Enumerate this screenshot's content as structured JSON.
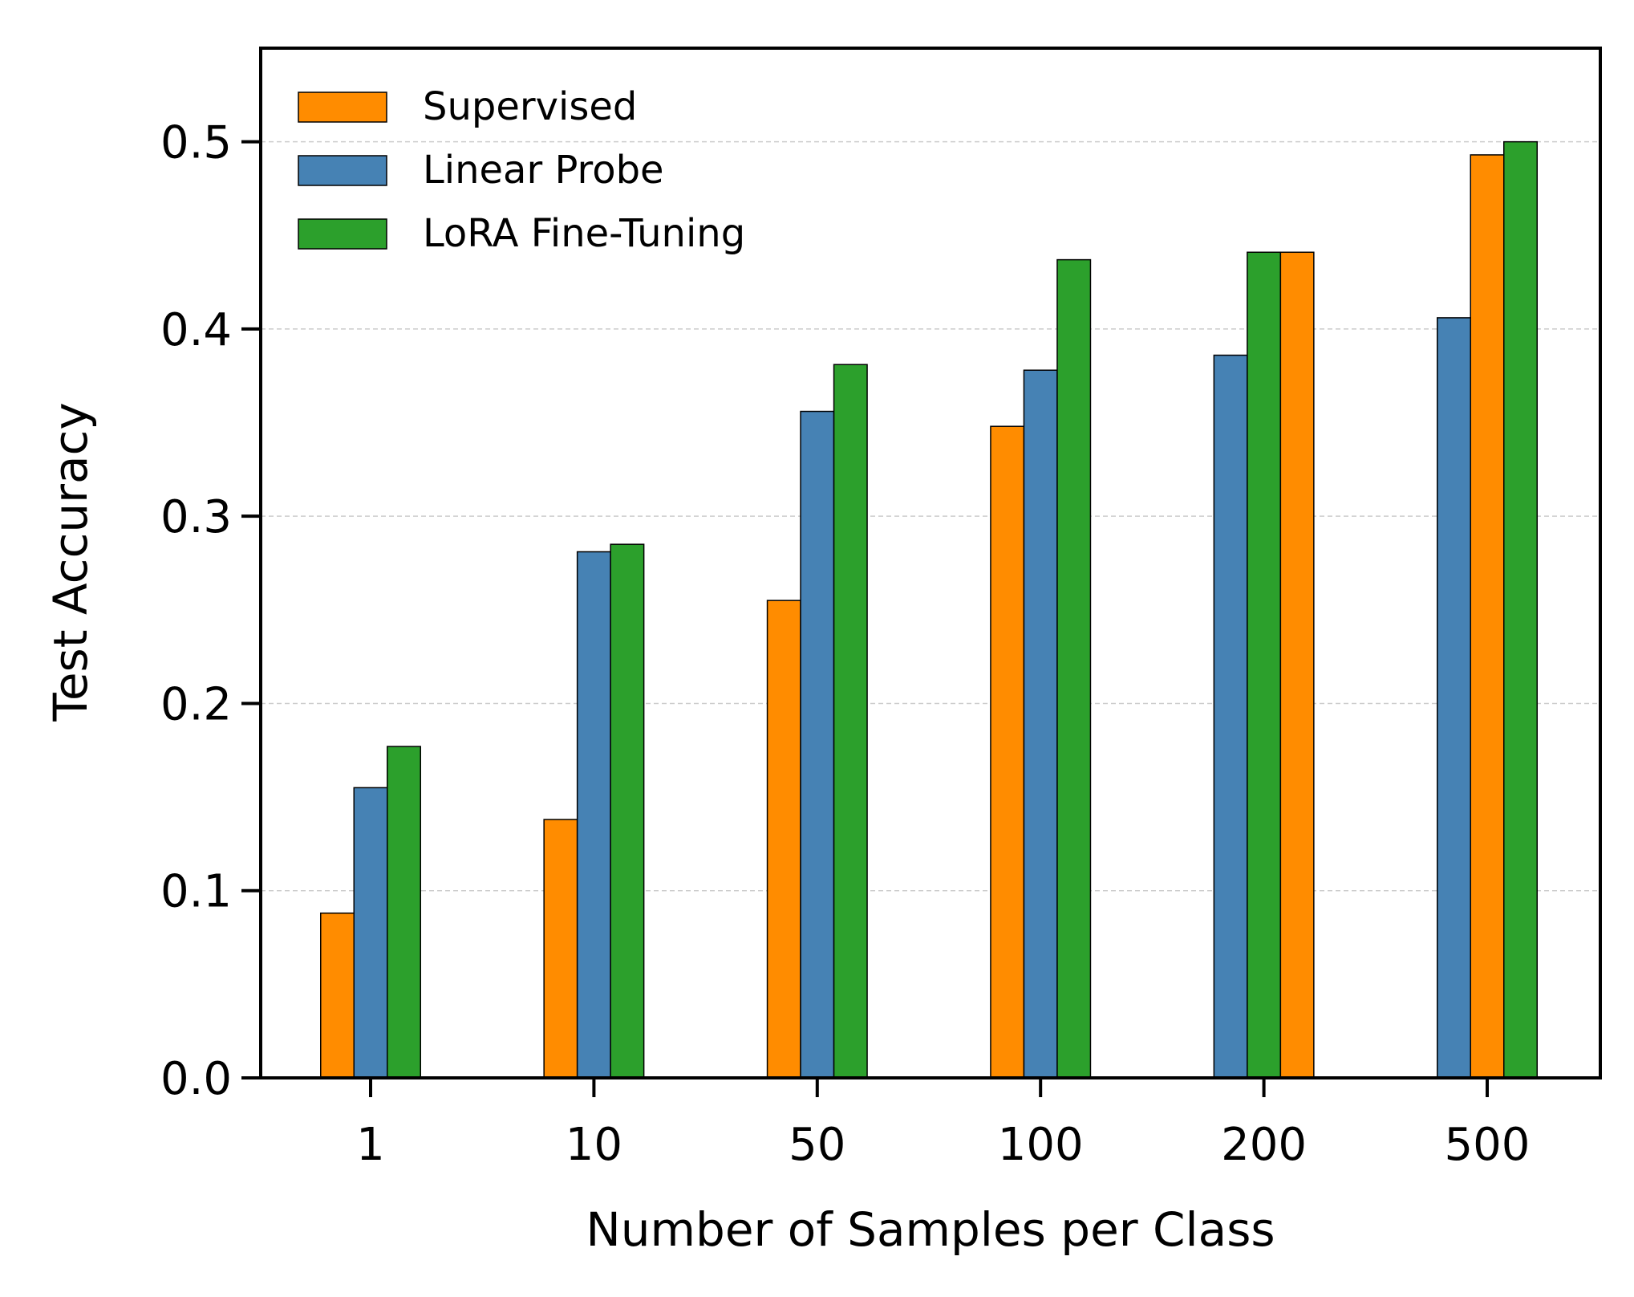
{
  "chart_data": {
    "type": "bar",
    "title": "",
    "xlabel": "Number of Samples per Class",
    "ylabel": "Test Accuracy",
    "ylim": [
      0,
      0.55
    ],
    "yticks": [
      0.0,
      0.1,
      0.2,
      0.3,
      0.4,
      0.5
    ],
    "ytick_labels": [
      "0.0",
      "0.1",
      "0.2",
      "0.3",
      "0.4",
      "0.5"
    ],
    "grid": "horizontal dashed",
    "legend_position": "top-left",
    "categories": [
      "1",
      "10",
      "50",
      "100",
      "200",
      "500"
    ],
    "series": [
      {
        "name": "Supervised",
        "color": "#ff8c00",
        "values": [
          0.088,
          0.138,
          0.255,
          0.348,
          0.441,
          0.493
        ]
      },
      {
        "name": "Linear Probe",
        "color": "#4682b4",
        "values": [
          0.155,
          0.281,
          0.356,
          0.378,
          0.386,
          0.406
        ]
      },
      {
        "name": "LoRA Fine-Tuning",
        "color": "#2ca02c",
        "values": [
          0.177,
          0.285,
          0.381,
          0.437,
          0.441,
          0.5
        ]
      }
    ],
    "bar_order": [
      [
        "Supervised",
        "Linear Probe",
        "LoRA Fine-Tuning"
      ],
      [
        "Supervised",
        "Linear Probe",
        "LoRA Fine-Tuning"
      ],
      [
        "Supervised",
        "Linear Probe",
        "LoRA Fine-Tuning"
      ],
      [
        "Supervised",
        "Linear Probe",
        "LoRA Fine-Tuning"
      ],
      [
        "Linear Probe",
        "LoRA Fine-Tuning",
        "Supervised"
      ],
      [
        "Linear Probe",
        "Supervised",
        "LoRA Fine-Tuning"
      ]
    ]
  }
}
